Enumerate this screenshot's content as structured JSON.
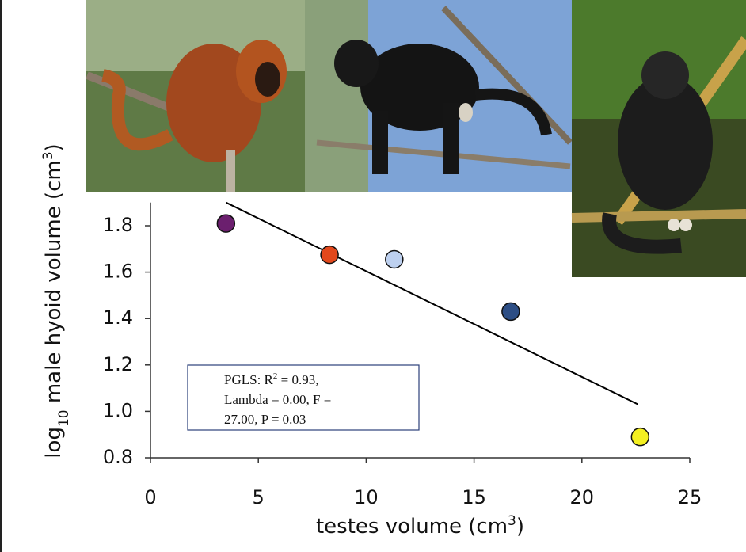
{
  "chart_data": {
    "type": "scatter",
    "x": [
      3.5,
      8.3,
      11.3,
      16.7,
      22.7
    ],
    "values": [
      1.81,
      1.675,
      1.655,
      1.43,
      0.89
    ],
    "colors": [
      "#6b1f6e",
      "#e2481c",
      "#bdd0ef",
      "#2d4e85",
      "#f4f021"
    ],
    "fit_line": {
      "x": [
        3.5,
        22.6
      ],
      "y": [
        1.9,
        1.03
      ]
    },
    "xlim": [
      0,
      25
    ],
    "ylim": [
      0.8,
      1.9
    ],
    "xticks": [
      0,
      5,
      10,
      15,
      20,
      25
    ],
    "yticks": [
      0.8,
      {
        "value": 1.0,
        "label": "1.0"
      },
      1.2,
      1.4,
      1.6,
      1.8
    ],
    "xlabel_parts": [
      "testes volume (cm",
      "3",
      ")"
    ],
    "ylabel_parts": [
      "log",
      "10",
      " male hyoid volume (cm",
      "3",
      ")"
    ],
    "annotation_lines": [
      [
        "PGLS: R",
        "2",
        " = 0.93,"
      ],
      [
        "Lambda = 0.00, F ="
      ],
      [
        "27.00, P = 0.03"
      ]
    ]
  }
}
